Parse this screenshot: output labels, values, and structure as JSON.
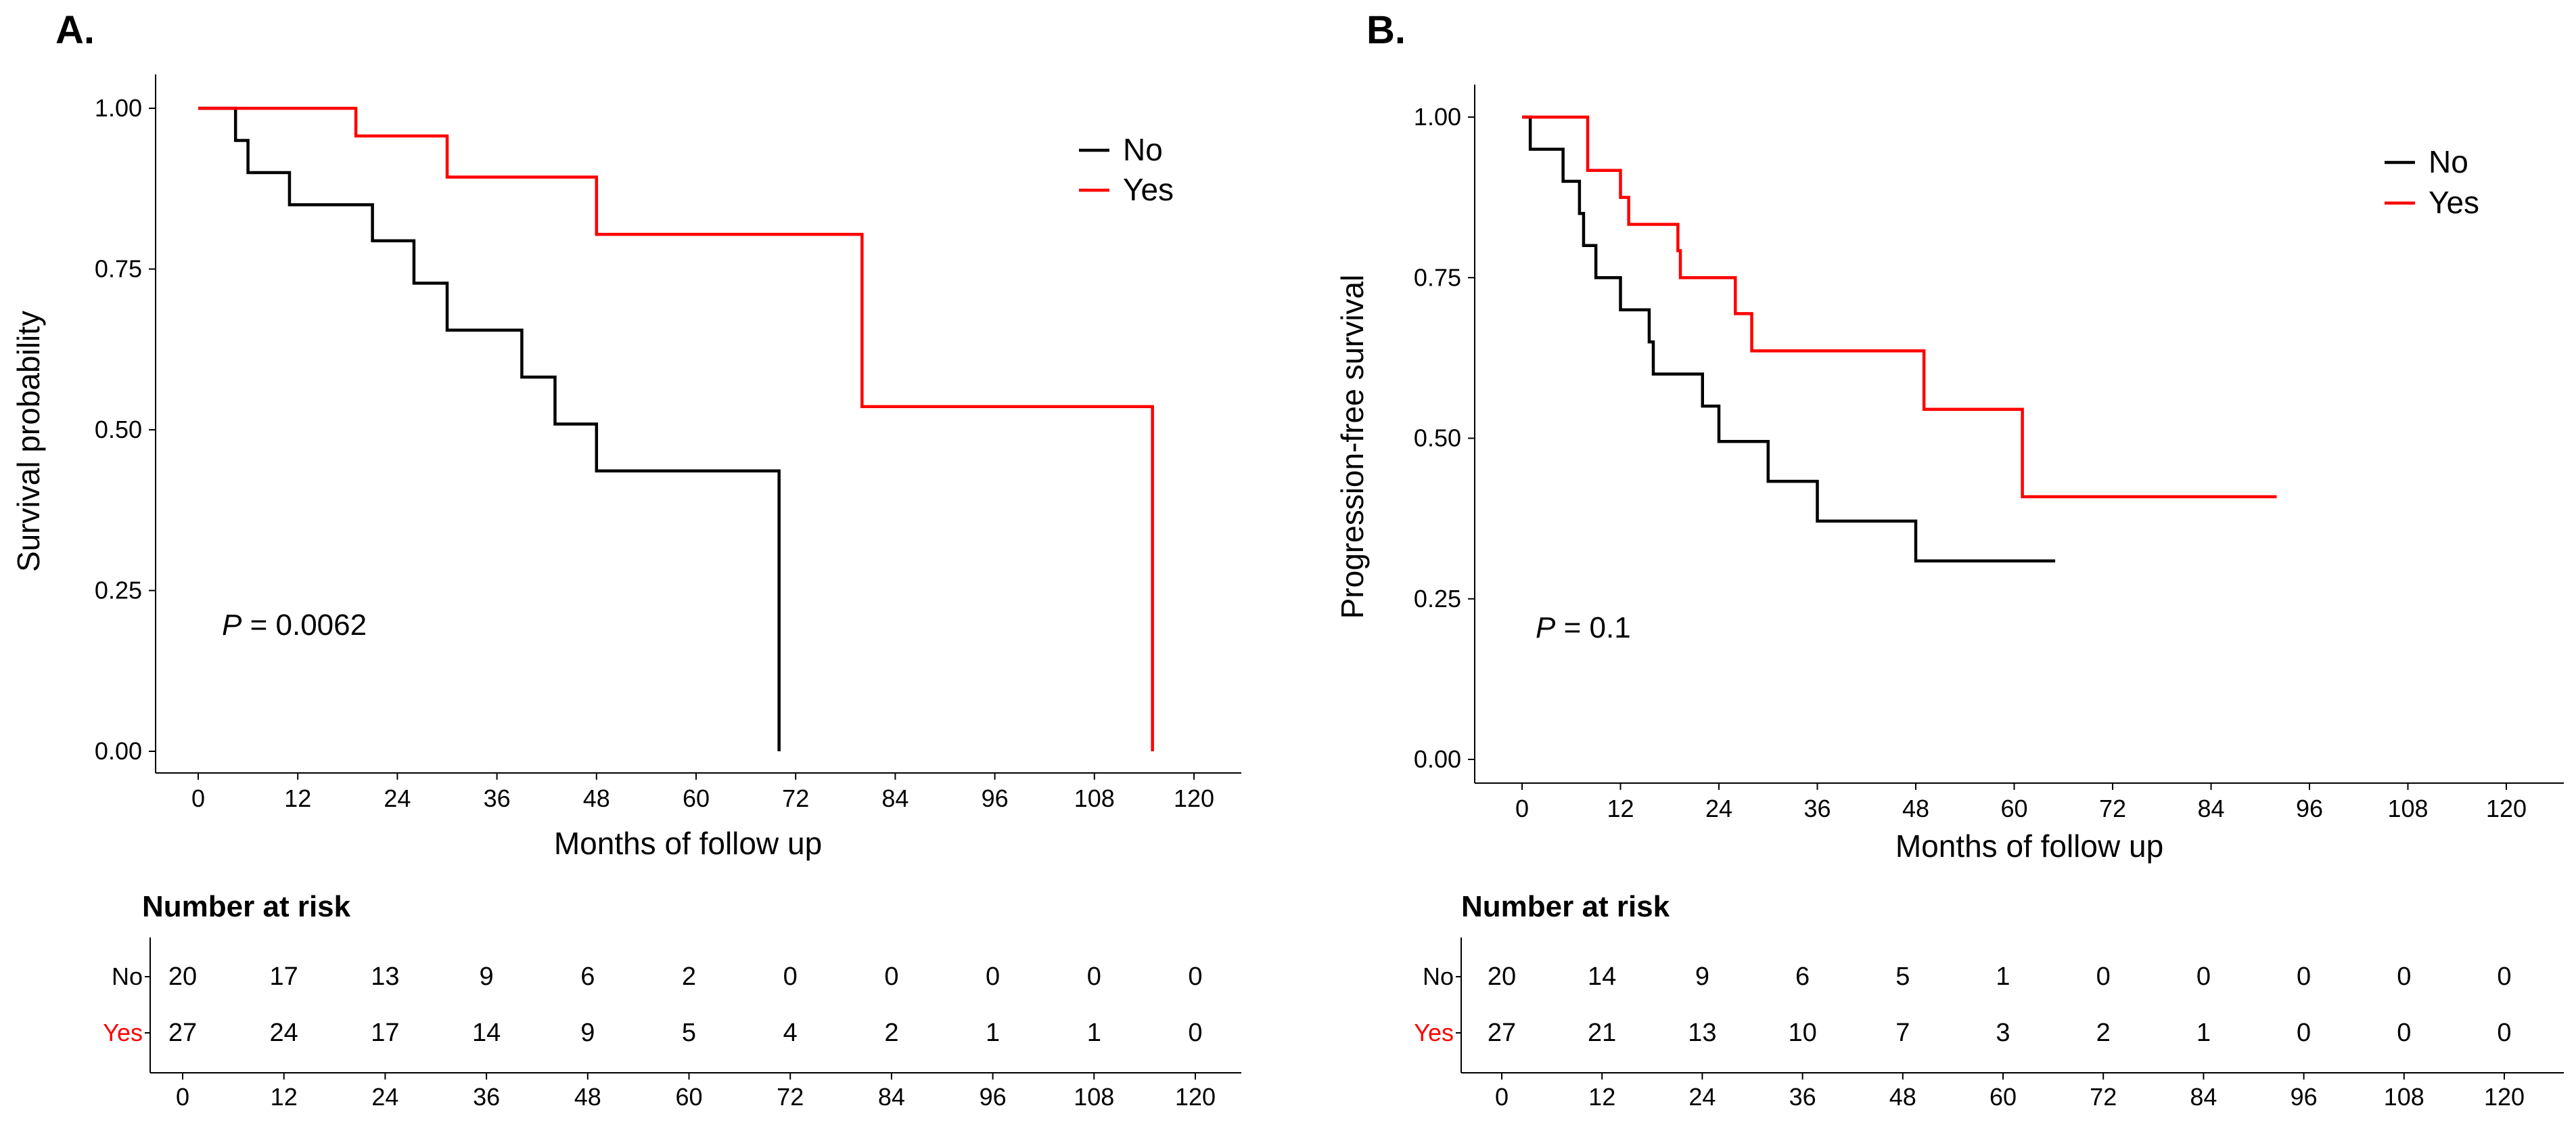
{
  "colors": {
    "no": "#000000",
    "yes": "#ff0000"
  },
  "chart_data": [
    {
      "type": "line",
      "panel_label": "A.",
      "title": "",
      "xlabel": "Months of follow up",
      "ylabel": "Survival probability",
      "xlim": [
        0,
        120
      ],
      "ylim": [
        0,
        1
      ],
      "xticks": [
        "0",
        "12",
        "24",
        "36",
        "48",
        "60",
        "72",
        "84",
        "96",
        "108",
        "120"
      ],
      "yticks": [
        "0.00",
        "0.25",
        "0.50",
        "0.75",
        "1.00"
      ],
      "legend": [
        "No",
        "Yes"
      ],
      "annotation_italic": "P",
      "annotation_value": " = 0.0062",
      "series": [
        {
          "name": "No",
          "color": "#000000",
          "x": [
            0,
            4.5,
            6,
            11,
            21,
            26,
            30,
            39,
            43,
            48,
            70,
            70
          ],
          "y": [
            1.0,
            0.95,
            0.9,
            0.85,
            0.794,
            0.728,
            0.655,
            0.582,
            0.509,
            0.436,
            0.436,
            0.0
          ]
        },
        {
          "name": "Yes",
          "color": "#ff0000",
          "x": [
            0,
            19,
            30,
            48,
            80,
            115,
            115
          ],
          "y": [
            1.0,
            0.957,
            0.893,
            0.804,
            0.536,
            0.536,
            0.0
          ]
        }
      ],
      "risk_table": {
        "title": "Number at risk",
        "times": [
          "0",
          "12",
          "24",
          "36",
          "48",
          "60",
          "72",
          "84",
          "96",
          "108",
          "120"
        ],
        "rows": [
          {
            "label": "No",
            "values": [
              "20",
              "17",
              "13",
              "9",
              "6",
              "2",
              "0",
              "0",
              "0",
              "0",
              "0"
            ]
          },
          {
            "label": "Yes",
            "values": [
              "27",
              "24",
              "17",
              "14",
              "9",
              "5",
              "4",
              "2",
              "1",
              "1",
              "0"
            ]
          }
        ]
      }
    },
    {
      "type": "line",
      "panel_label": "B.",
      "title": "",
      "xlabel": "Months of follow up",
      "ylabel": "Progression-free survival",
      "xlim": [
        0,
        120
      ],
      "ylim": [
        0,
        1
      ],
      "xticks": [
        "0",
        "12",
        "24",
        "36",
        "48",
        "60",
        "72",
        "84",
        "96",
        "108",
        "120"
      ],
      "yticks": [
        "0.00",
        "0.25",
        "0.50",
        "0.75",
        "1.00"
      ],
      "legend": [
        "No",
        "Yes"
      ],
      "annotation_italic": "P",
      "annotation_value": " = 0.1",
      "series": [
        {
          "name": "No",
          "color": "#000000",
          "x": [
            0,
            1,
            5,
            7,
            7.5,
            8,
            9,
            12,
            15,
            15.5,
            16,
            21,
            22,
            24,
            29,
            30,
            35,
            36,
            47,
            48,
            65
          ],
          "y": [
            1.0,
            0.95,
            0.9,
            0.85,
            0.8,
            0.8,
            0.75,
            0.7,
            0.7,
            0.65,
            0.6,
            0.6,
            0.55,
            0.495,
            0.495,
            0.433,
            0.433,
            0.371,
            0.371,
            0.309,
            0.309
          ]
        },
        {
          "name": "Yes",
          "color": "#ff0000",
          "x": [
            0,
            8,
            11,
            12,
            13,
            18,
            19,
            19.3,
            24,
            26,
            28,
            48,
            49,
            60,
            61,
            92
          ],
          "y": [
            1.0,
            0.917,
            0.917,
            0.875,
            0.833,
            0.833,
            0.792,
            0.75,
            0.75,
            0.694,
            0.636,
            0.636,
            0.545,
            0.545,
            0.409,
            0.409
          ]
        }
      ],
      "risk_table": {
        "title": "Number at risk",
        "times": [
          "0",
          "12",
          "24",
          "36",
          "48",
          "60",
          "72",
          "84",
          "96",
          "108",
          "120"
        ],
        "rows": [
          {
            "label": "No",
            "values": [
              "20",
              "14",
              "9",
              "6",
              "5",
              "1",
              "0",
              "0",
              "0",
              "0",
              "0"
            ]
          },
          {
            "label": "Yes",
            "values": [
              "27",
              "21",
              "13",
              "10",
              "7",
              "3",
              "2",
              "1",
              "0",
              "0",
              "0"
            ]
          }
        ]
      }
    }
  ]
}
